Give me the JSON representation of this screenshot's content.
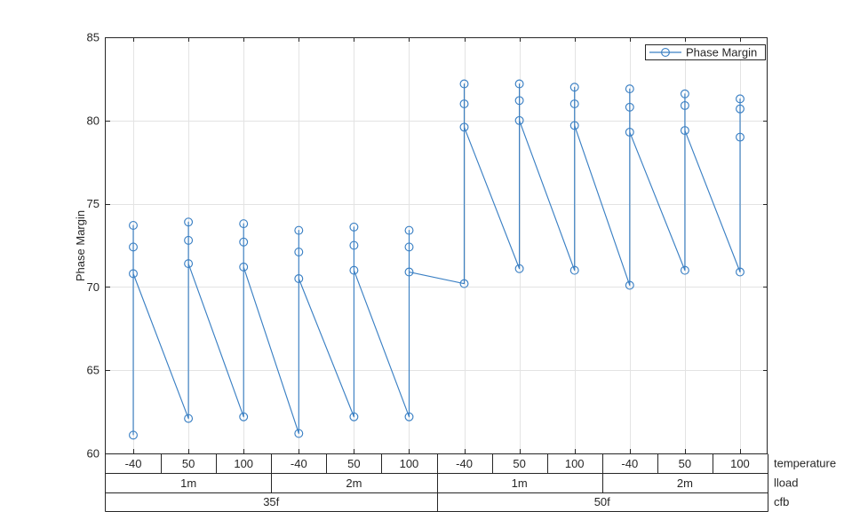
{
  "chart_data": {
    "type": "line",
    "title": "",
    "ylabel": "Phase Margin",
    "ylim": [
      60,
      85
    ],
    "yticks": [
      60,
      65,
      70,
      75,
      80,
      85
    ],
    "grid": true,
    "line_color": "#3b80c4",
    "marker": "open-circle",
    "legend": {
      "entries": [
        "Phase Margin"
      ],
      "position": "top-right-inside"
    },
    "x_axis": {
      "hierarchy_labels_right": [
        "temperature",
        "lload",
        "cfb"
      ],
      "temperature_per_group": [
        "-40",
        "50",
        "100",
        "-40",
        "50",
        "100",
        "-40",
        "50",
        "100",
        "-40",
        "50",
        "100"
      ],
      "lload_spans": [
        {
          "label": "1m",
          "groups": 3
        },
        {
          "label": "2m",
          "groups": 3
        },
        {
          "label": "1m",
          "groups": 3
        },
        {
          "label": "2m",
          "groups": 3
        }
      ],
      "cfb_spans": [
        {
          "label": "35f",
          "groups": 6
        },
        {
          "label": "50f",
          "groups": 6
        }
      ]
    },
    "groups": [
      {
        "cfb": "35f",
        "lload": "1m",
        "temperature": "-40",
        "points_in_plot_order": [
          61.1,
          72.4,
          73.7,
          70.8
        ]
      },
      {
        "cfb": "35f",
        "lload": "1m",
        "temperature": "50",
        "points_in_plot_order": [
          62.1,
          72.8,
          73.9,
          71.4
        ]
      },
      {
        "cfb": "35f",
        "lload": "1m",
        "temperature": "100",
        "points_in_plot_order": [
          62.2,
          72.7,
          73.8,
          71.2
        ]
      },
      {
        "cfb": "35f",
        "lload": "2m",
        "temperature": "-40",
        "points_in_plot_order": [
          61.2,
          72.1,
          73.4,
          70.5
        ]
      },
      {
        "cfb": "35f",
        "lload": "2m",
        "temperature": "50",
        "points_in_plot_order": [
          62.2,
          72.5,
          73.6,
          71.0
        ]
      },
      {
        "cfb": "35f",
        "lload": "2m",
        "temperature": "100",
        "points_in_plot_order": [
          62.2,
          72.4,
          73.4,
          70.9
        ]
      },
      {
        "cfb": "50f",
        "lload": "1m",
        "temperature": "-40",
        "points_in_plot_order": [
          70.2,
          81.0,
          82.2,
          79.6
        ]
      },
      {
        "cfb": "50f",
        "lload": "1m",
        "temperature": "50",
        "points_in_plot_order": [
          71.1,
          81.2,
          82.2,
          80.0
        ]
      },
      {
        "cfb": "50f",
        "lload": "1m",
        "temperature": "100",
        "points_in_plot_order": [
          71.0,
          81.0,
          82.0,
          79.7
        ]
      },
      {
        "cfb": "50f",
        "lload": "2m",
        "temperature": "-40",
        "points_in_plot_order": [
          70.1,
          80.8,
          81.9,
          79.3
        ]
      },
      {
        "cfb": "50f",
        "lload": "2m",
        "temperature": "50",
        "points_in_plot_order": [
          71.0,
          80.9,
          81.6,
          79.4
        ]
      },
      {
        "cfb": "50f",
        "lload": "2m",
        "temperature": "100",
        "points_in_plot_order": [
          70.9,
          80.7,
          81.3,
          79.0
        ]
      }
    ],
    "connection_note": "one continuous polyline: within each x-group the 4 points are joined vertically (bottom, mid-high, top, then back down to mid-low); the last point of each group connects diagonally to the bottom point of the next group"
  }
}
